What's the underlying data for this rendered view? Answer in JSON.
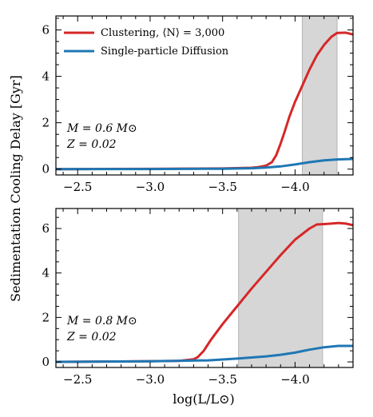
{
  "chart_data": [
    {
      "type": "line",
      "panel": "top",
      "xlabel": "log(L/L⊙)",
      "ylabel": "Sedimentation Cooling Delay [Gyr]",
      "xlim": [
        -2.35,
        -4.4
      ],
      "ylim": [
        -0.25,
        6.6
      ],
      "x_reversed": true,
      "x_ticks": [
        -2.5,
        -3.0,
        -3.5,
        -4.0
      ],
      "x_tick_labels": [
        "−2.5",
        "−3.0",
        "−3.5",
        "−4.0"
      ],
      "y_ticks": [
        0,
        2,
        4,
        6
      ],
      "y_tick_labels": [
        "0",
        "2",
        "4",
        "6"
      ],
      "shaded_region": [
        -4.05,
        -4.29
      ],
      "legend": {
        "placement": "top-left",
        "entries": [
          {
            "label": "Clustering, ⟨N⟩ = 3,000",
            "color": "#d62728"
          },
          {
            "label": "Single-particle Diffusion",
            "color": "#1f77b4"
          }
        ]
      },
      "annotation": [
        "M = 0.6 M⊙",
        "Z = 0.02"
      ],
      "series": [
        {
          "name": "Clustering, ⟨N⟩ = 3,000",
          "color": "#d62728",
          "x": [
            -2.35,
            -3.0,
            -3.5,
            -3.7,
            -3.75,
            -3.8,
            -3.84,
            -3.87,
            -3.9,
            -3.93,
            -3.96,
            -4.0,
            -4.05,
            -4.1,
            -4.15,
            -4.2,
            -4.25,
            -4.29,
            -4.35,
            -4.4
          ],
          "y": [
            0.0,
            0.01,
            0.03,
            0.06,
            0.09,
            0.15,
            0.3,
            0.6,
            1.1,
            1.65,
            2.25,
            2.9,
            3.6,
            4.3,
            4.9,
            5.35,
            5.7,
            5.87,
            5.88,
            5.8
          ]
        },
        {
          "name": "Single-particle Diffusion",
          "color": "#1f77b4",
          "x": [
            -2.35,
            -3.0,
            -3.5,
            -3.7,
            -3.8,
            -3.9,
            -4.0,
            -4.1,
            -4.2,
            -4.3,
            -4.4
          ],
          "y": [
            0.0,
            0.005,
            0.02,
            0.04,
            0.07,
            0.12,
            0.2,
            0.3,
            0.38,
            0.42,
            0.44
          ]
        }
      ]
    },
    {
      "type": "line",
      "panel": "bottom",
      "xlabel": "log(L/L⊙)",
      "xlim": [
        -2.35,
        -4.4
      ],
      "ylim": [
        -0.25,
        6.9
      ],
      "x_reversed": true,
      "x_ticks": [
        -2.5,
        -3.0,
        -3.5,
        -4.0
      ],
      "x_tick_labels": [
        "−2.5",
        "−3.0",
        "−3.5",
        "−4.0"
      ],
      "y_ticks": [
        0,
        2,
        4,
        6
      ],
      "y_tick_labels": [
        "0",
        "2",
        "4",
        "6"
      ],
      "shaded_region": [
        -3.61,
        -4.19
      ],
      "annotation": [
        "M = 0.8 M⊙",
        "Z = 0.02"
      ],
      "series": [
        {
          "name": "Clustering, ⟨N⟩ = 3,000",
          "color": "#d62728",
          "x": [
            -2.35,
            -2.8,
            -3.2,
            -3.3,
            -3.33,
            -3.37,
            -3.42,
            -3.5,
            -3.6,
            -3.7,
            -3.8,
            -3.9,
            -4.0,
            -4.1,
            -4.15,
            -4.2,
            -4.25,
            -4.3,
            -4.35,
            -4.4
          ],
          "y": [
            0.0,
            0.02,
            0.05,
            0.12,
            0.22,
            0.5,
            1.0,
            1.7,
            2.5,
            3.3,
            4.05,
            4.8,
            5.5,
            6.0,
            6.18,
            6.2,
            6.22,
            6.25,
            6.22,
            6.15
          ]
        },
        {
          "name": "Single-particle Diffusion",
          "color": "#1f77b4",
          "x": [
            -2.35,
            -3.0,
            -3.4,
            -3.6,
            -3.8,
            -3.9,
            -4.0,
            -4.1,
            -4.2,
            -4.3,
            -4.4
          ],
          "y": [
            0.0,
            0.03,
            0.07,
            0.15,
            0.25,
            0.32,
            0.42,
            0.55,
            0.66,
            0.72,
            0.72
          ]
        }
      ]
    }
  ]
}
